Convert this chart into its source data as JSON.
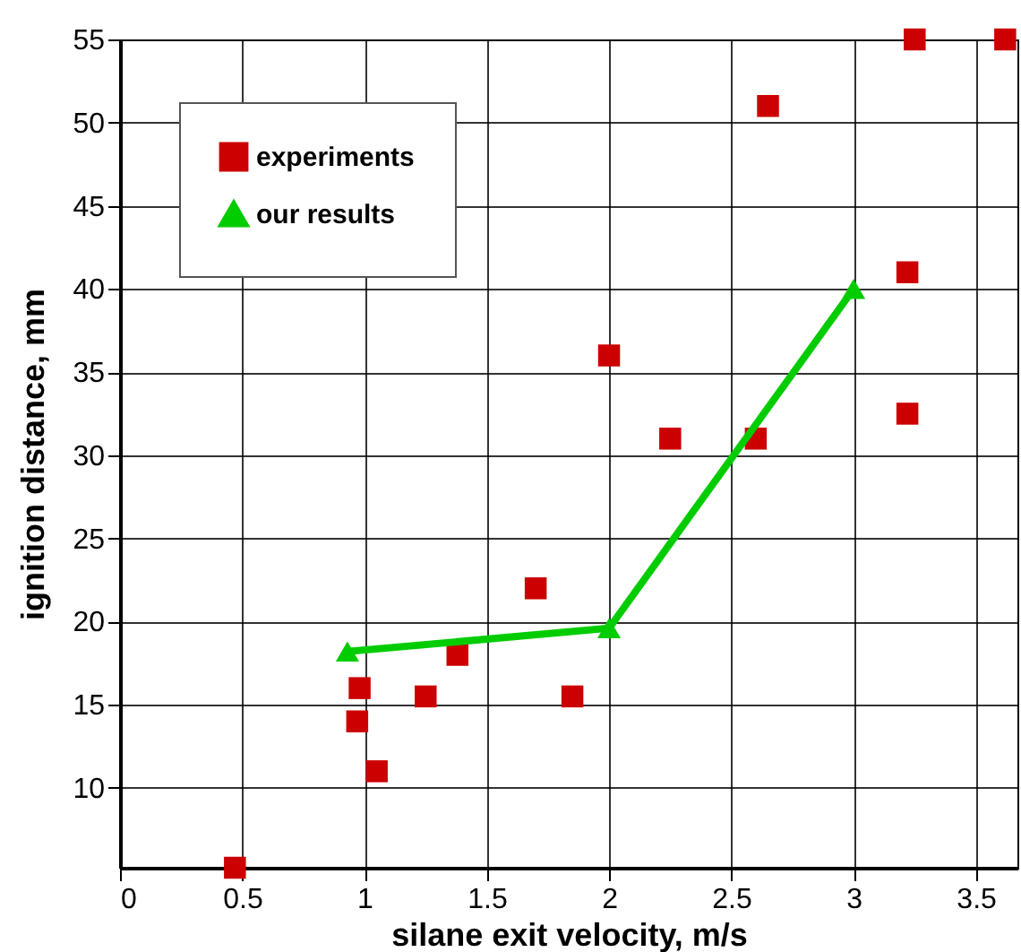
{
  "chart_data": {
    "type": "scatter",
    "xlabel": "silane exit velocity, m/s",
    "ylabel": "ignition distance, mm",
    "xlim": [
      0,
      3.67
    ],
    "ylim": [
      5.2,
      55
    ],
    "xticks": [
      0,
      0.5,
      1,
      1.5,
      2,
      2.5,
      3,
      3.5
    ],
    "yticks": [
      10,
      15,
      20,
      25,
      30,
      35,
      40,
      45,
      50,
      55
    ],
    "grid": true,
    "legend": "top left",
    "series": [
      {
        "name": "experiments",
        "marker": "square",
        "color": "#cc0000",
        "x": [
          0.47,
          0.97,
          0.98,
          1.05,
          1.25,
          1.38,
          1.7,
          1.85,
          2.0,
          2.25,
          2.6,
          2.65,
          3.22,
          3.22,
          3.25,
          3.62
        ],
        "values": [
          5.2,
          14,
          16,
          11,
          15.5,
          18,
          22,
          15.5,
          36,
          31,
          31,
          51,
          41,
          32.5,
          55,
          55
        ]
      },
      {
        "name": "our results",
        "type": "line",
        "marker": "triangle",
        "line_style": "solid",
        "color": "#00cc00",
        "x": [
          0.93,
          2.0,
          3.0
        ],
        "values": [
          18.2,
          19.6,
          40
        ]
      }
    ]
  }
}
